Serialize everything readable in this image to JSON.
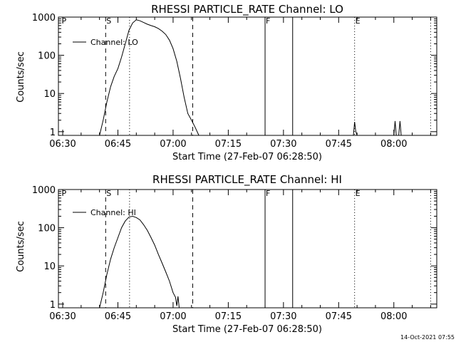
{
  "chart_data": [
    {
      "type": "line",
      "title": "RHESSI PARTICLE_RATE Channel: LO",
      "xlabel": "Start Time (27-Feb-07 06:28:50)",
      "ylabel": "Counts/sec",
      "yscale": "log",
      "xlim": [
        "06:28:50",
        "08:11:40"
      ],
      "ylim": [
        0.8,
        1000
      ],
      "x_tick_labels": [
        "06:30",
        "06:45",
        "07:00",
        "07:15",
        "07:30",
        "07:45",
        "08:00"
      ],
      "y_tick_labels": [
        "1",
        "10",
        "100",
        "1000"
      ],
      "grid": false,
      "legend": {
        "position": "top-left",
        "entries": [
          "Channel: LO"
        ]
      },
      "markers": {
        "dashed": [
          "06:41:40",
          "07:05:20"
        ],
        "dotted": [
          "06:48:10",
          "07:49:20",
          "08:10:00"
        ],
        "solid": [
          "07:25:00",
          "07:32:30"
        ]
      },
      "marker_labels": [
        {
          "text": "P",
          "x": "06:29:30"
        },
        {
          "text": "S",
          "x": "06:41:40"
        },
        {
          "text": "F",
          "x": "07:25:00"
        },
        {
          "text": "E",
          "x": "07:49:20"
        }
      ],
      "series": [
        {
          "name": "Channel: LO",
          "x": [
            "06:40:00",
            "06:41:00",
            "06:42:00",
            "06:43:00",
            "06:44:00",
            "06:45:00",
            "06:46:00",
            "06:47:00",
            "06:48:00",
            "06:49:00",
            "06:50:00",
            "06:51:00",
            "06:52:00",
            "06:53:00",
            "06:54:00",
            "06:55:00",
            "06:56:00",
            "06:57:00",
            "06:58:00",
            "06:59:00",
            "07:00:00",
            "07:01:00",
            "07:02:00",
            "07:03:00",
            "07:04:00",
            "07:05:00",
            "07:06:00",
            "07:07:00"
          ],
          "values": [
            0.8,
            2,
            6,
            15,
            28,
            45,
            90,
            200,
            450,
            700,
            850,
            800,
            720,
            650,
            600,
            560,
            500,
            430,
            350,
            250,
            150,
            70,
            25,
            8,
            3,
            2,
            1.3,
            0.8
          ]
        },
        {
          "name": "",
          "x": [
            "07:49:00",
            "07:49:20",
            "07:49:40",
            "07:50:00",
            "08:00:00",
            "08:00:20",
            "08:00:40",
            "08:01:20",
            "08:01:40",
            "08:02:00"
          ],
          "values": [
            0.8,
            1.8,
            1.0,
            0.8,
            0.8,
            1.9,
            0.8,
            0.8,
            1.9,
            0.8
          ]
        }
      ]
    },
    {
      "type": "line",
      "title": "RHESSI PARTICLE_RATE Channel: HI",
      "xlabel": "Start Time (27-Feb-07 06:28:50)",
      "ylabel": "Counts/sec",
      "yscale": "log",
      "xlim": [
        "06:28:50",
        "08:11:40"
      ],
      "ylim": [
        0.8,
        1000
      ],
      "x_tick_labels": [
        "06:30",
        "06:45",
        "07:00",
        "07:15",
        "07:30",
        "07:45",
        "08:00"
      ],
      "y_tick_labels": [
        "1",
        "10",
        "100",
        "1000"
      ],
      "grid": false,
      "legend": {
        "position": "top-left",
        "entries": [
          "Channel: HI"
        ]
      },
      "markers": {
        "dashed": [
          "06:41:40",
          "07:05:20"
        ],
        "dotted": [
          "06:48:10",
          "07:49:20",
          "08:10:00"
        ],
        "solid": [
          "07:25:00",
          "07:32:30"
        ]
      },
      "marker_labels": [
        {
          "text": "P",
          "x": "06:29:30"
        },
        {
          "text": "S",
          "x": "06:41:40"
        },
        {
          "text": "F",
          "x": "07:25:00"
        },
        {
          "text": "E",
          "x": "07:49:20"
        }
      ],
      "series": [
        {
          "name": "Channel: HI",
          "x": [
            "06:40:00",
            "06:41:00",
            "06:42:00",
            "06:43:00",
            "06:44:00",
            "06:45:00",
            "06:46:00",
            "06:47:00",
            "06:48:00",
            "06:49:00",
            "06:50:00",
            "06:51:00",
            "06:52:00",
            "06:53:00",
            "06:54:00",
            "06:55:00",
            "06:56:00",
            "06:57:00",
            "06:58:00",
            "06:59:00",
            "07:00:00",
            "07:00:40",
            "07:01:00",
            "07:01:20",
            "07:01:40"
          ],
          "values": [
            0.8,
            2,
            6,
            15,
            30,
            55,
            100,
            150,
            190,
            200,
            185,
            160,
            120,
            85,
            55,
            35,
            20,
            12,
            7,
            4,
            2,
            1.5,
            0.9,
            1.6,
            0.8
          ]
        }
      ]
    }
  ],
  "footer": {
    "date_stamp": "14-Oct-2021 07:55"
  }
}
